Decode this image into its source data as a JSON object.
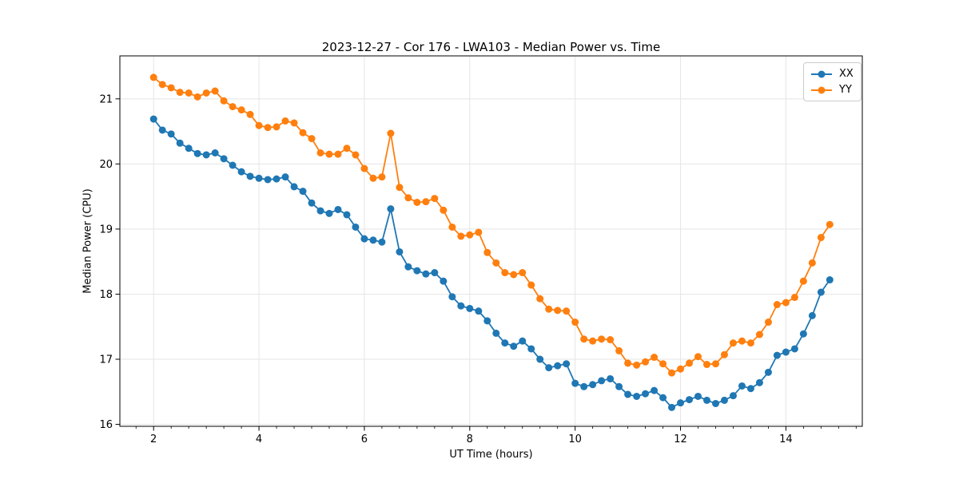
{
  "figure": {
    "background": "#ffffff"
  },
  "chart_data": {
    "type": "line",
    "title": "2023-12-27 - Cor 176 - LWA103 - Median Power vs. Time",
    "xlabel": "UT Time (hours)",
    "ylabel": "Median Power (CPU)",
    "xlim": [
      1.36,
      15.45
    ],
    "ylim": [
      15.97,
      21.66
    ],
    "x_ticks": [
      2,
      4,
      6,
      8,
      10,
      12,
      14
    ],
    "y_ticks": [
      16,
      17,
      18,
      19,
      20,
      21
    ],
    "x_minor_tick_step": 0.33333,
    "grid": true,
    "grid_color": "#e5e5e5",
    "legend_position": "upper right",
    "x": [
      2.0,
      2.167,
      2.333,
      2.5,
      2.667,
      2.833,
      3.0,
      3.167,
      3.333,
      3.5,
      3.667,
      3.833,
      4.0,
      4.167,
      4.333,
      4.5,
      4.667,
      4.833,
      5.0,
      5.167,
      5.333,
      5.5,
      5.667,
      5.833,
      6.0,
      6.167,
      6.333,
      6.5,
      6.667,
      6.833,
      7.0,
      7.167,
      7.333,
      7.5,
      7.667,
      7.833,
      8.0,
      8.167,
      8.333,
      8.5,
      8.667,
      8.833,
      9.0,
      9.167,
      9.333,
      9.5,
      9.667,
      9.833,
      10.0,
      10.167,
      10.333,
      10.5,
      10.667,
      10.833,
      11.0,
      11.167,
      11.333,
      11.5,
      11.667,
      11.833,
      12.0,
      12.167,
      12.333,
      12.5,
      12.667,
      12.833,
      13.0,
      13.167,
      13.333,
      13.5,
      13.667,
      13.833,
      14.0,
      14.167,
      14.333,
      14.5,
      14.667,
      14.833
    ],
    "series": [
      {
        "name": "XX",
        "color": "#1f77b4",
        "marker": "circle",
        "values": [
          20.69,
          20.52,
          20.46,
          20.32,
          20.24,
          20.16,
          20.14,
          20.17,
          20.08,
          19.98,
          19.88,
          19.81,
          19.78,
          19.76,
          19.77,
          19.8,
          19.65,
          19.58,
          19.4,
          19.28,
          19.24,
          19.3,
          19.22,
          19.03,
          18.85,
          18.83,
          18.8,
          19.31,
          18.65,
          18.42,
          18.36,
          18.31,
          18.33,
          18.2,
          17.96,
          17.82,
          17.78,
          17.74,
          17.59,
          17.4,
          17.25,
          17.2,
          17.28,
          17.16,
          17.0,
          16.87,
          16.9,
          16.93,
          16.63,
          16.58,
          16.61,
          16.67,
          16.7,
          16.58,
          16.46,
          16.43,
          16.47,
          16.52,
          16.41,
          16.26,
          16.33,
          16.38,
          16.43,
          16.37,
          16.32,
          16.37,
          16.44,
          16.59,
          16.55,
          16.64,
          16.8,
          17.06,
          17.11,
          17.16,
          17.39,
          17.67,
          18.03,
          18.22
        ]
      },
      {
        "name": "YY",
        "color": "#ff7f0e",
        "marker": "circle",
        "values": [
          21.33,
          21.22,
          21.17,
          21.1,
          21.09,
          21.03,
          21.09,
          21.12,
          20.97,
          20.88,
          20.83,
          20.76,
          20.59,
          20.56,
          20.57,
          20.66,
          20.63,
          20.48,
          20.39,
          20.17,
          20.15,
          20.15,
          20.24,
          20.14,
          19.93,
          19.78,
          19.8,
          20.47,
          19.64,
          19.48,
          19.41,
          19.42,
          19.47,
          19.29,
          19.03,
          18.89,
          18.91,
          18.95,
          18.64,
          18.48,
          18.33,
          18.3,
          18.33,
          18.14,
          17.93,
          17.77,
          17.75,
          17.74,
          17.57,
          17.31,
          17.28,
          17.31,
          17.3,
          17.13,
          16.94,
          16.91,
          16.96,
          17.03,
          16.93,
          16.79,
          16.85,
          16.94,
          17.04,
          16.92,
          16.93,
          17.07,
          17.25,
          17.28,
          17.25,
          17.38,
          17.57,
          17.84,
          17.87,
          17.95,
          18.2,
          18.48,
          18.87,
          19.07
        ]
      }
    ]
  }
}
